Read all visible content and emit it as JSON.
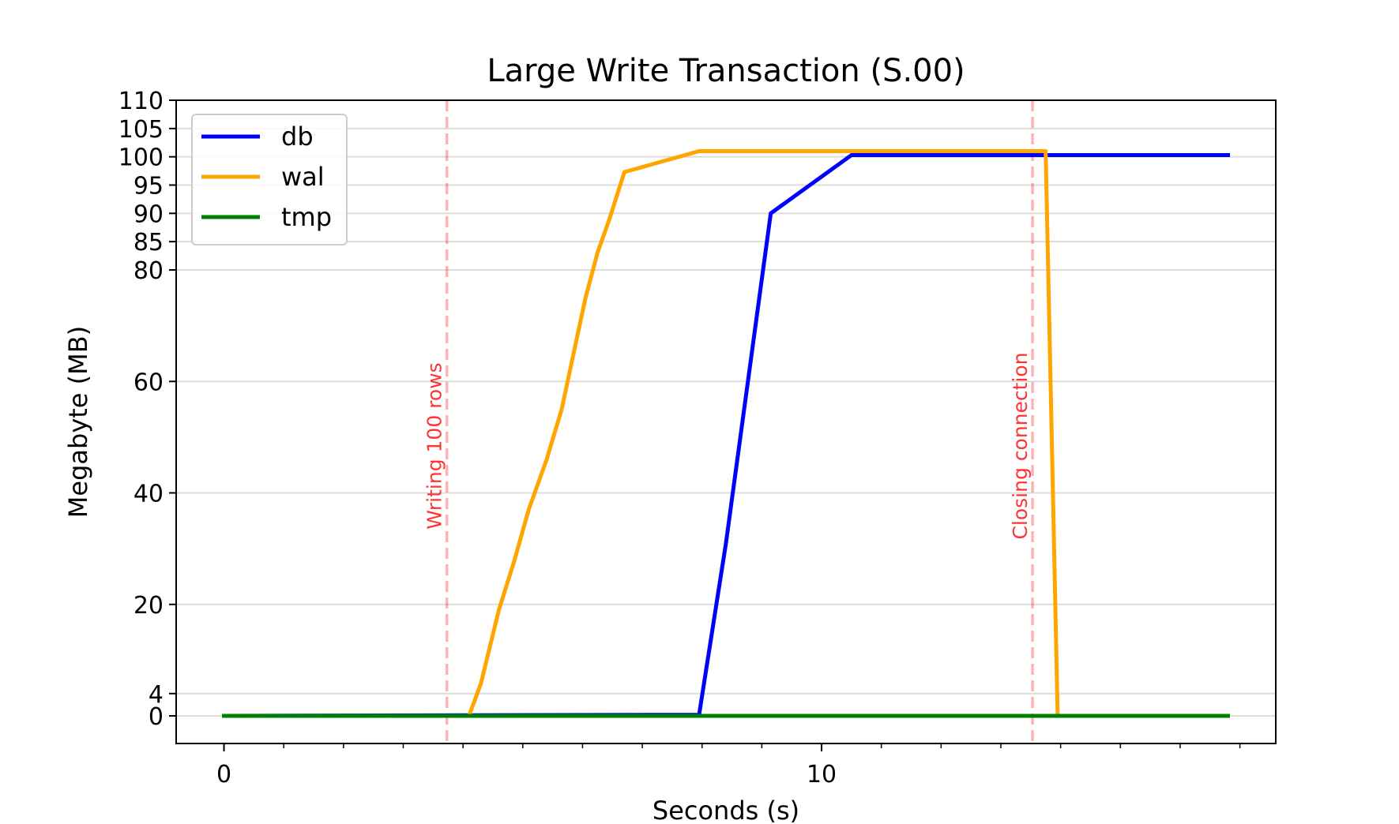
{
  "chart_data": {
    "type": "line",
    "title": "Large Write Transaction (S.00)",
    "xlabel": "Seconds (s)",
    "ylabel": "Megabyte (MB)",
    "xlim": [
      -0.8,
      17.6
    ],
    "ylim": [
      -5,
      110
    ],
    "xticks": [
      0,
      10
    ],
    "xtick_labels": [
      "0",
      "10"
    ],
    "x_minor_ticks": [
      1,
      2,
      3,
      4,
      5,
      6,
      7,
      8,
      9,
      11,
      12,
      13,
      14,
      15,
      16,
      17
    ],
    "yticks": [
      0,
      4,
      20,
      40,
      60,
      80,
      85,
      90,
      95,
      100,
      105,
      110
    ],
    "ytick_labels": [
      "0",
      "4",
      "20",
      "40",
      "60",
      "80",
      "85",
      "90",
      "95",
      "100",
      "105",
      "110"
    ],
    "grid": "horizontal",
    "legend_position": "top-left",
    "series": [
      {
        "name": "db",
        "color": "#0000ff",
        "points": [
          [
            0,
            0
          ],
          [
            4,
            0.1
          ],
          [
            7.95,
            0.2
          ],
          [
            8.4,
            31
          ],
          [
            9.15,
            90
          ],
          [
            10.5,
            100.3
          ],
          [
            16.8,
            100.3
          ]
        ]
      },
      {
        "name": "wal",
        "color": "#ffa500",
        "points": [
          [
            0,
            0
          ],
          [
            4.1,
            0
          ],
          [
            4.3,
            5.8
          ],
          [
            4.6,
            19
          ],
          [
            4.85,
            27.5
          ],
          [
            5.1,
            37
          ],
          [
            5.4,
            46
          ],
          [
            5.65,
            55
          ],
          [
            5.85,
            65
          ],
          [
            6.05,
            75
          ],
          [
            6.25,
            83
          ],
          [
            6.45,
            89
          ],
          [
            6.7,
            97.3
          ],
          [
            7.95,
            101
          ],
          [
            13.75,
            101
          ],
          [
            13.95,
            0
          ],
          [
            16.8,
            0
          ]
        ]
      },
      {
        "name": "tmp",
        "color": "#008000",
        "points": [
          [
            0,
            0
          ],
          [
            16.8,
            0
          ]
        ]
      }
    ],
    "annotations": [
      {
        "x": 3.73,
        "text": "Writing 100 rows",
        "color": "#ff0000"
      },
      {
        "x": 13.53,
        "text": "Closing connection",
        "color": "#ff0000"
      }
    ]
  }
}
